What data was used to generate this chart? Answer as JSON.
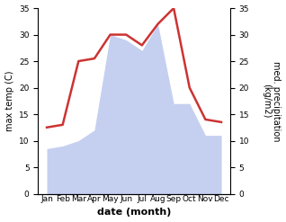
{
  "months": [
    "Jan",
    "Feb",
    "Mar",
    "Apr",
    "May",
    "Jun",
    "Jul",
    "Aug",
    "Sep",
    "Oct",
    "Nov",
    "Dec"
  ],
  "temperature": [
    12.5,
    13.0,
    25.0,
    25.5,
    30.0,
    30.0,
    28.0,
    32.0,
    35.0,
    20.0,
    14.0,
    13.5
  ],
  "precipitation": [
    8.5,
    9.0,
    10.0,
    12.0,
    30.0,
    29.0,
    27.0,
    32.0,
    17.0,
    17.0,
    11.0,
    11.0
  ],
  "temp_color": "#cc3333",
  "precip_color": "#c5cff0",
  "ylabel_left": "max temp (C)",
  "ylabel_right": "med. precipitation\n(kg/m2)",
  "xlabel": "date (month)",
  "ylim": [
    0,
    35
  ],
  "yticks": [
    0,
    5,
    10,
    15,
    20,
    25,
    30,
    35
  ],
  "temp_linewidth": 1.8,
  "background_color": "#ffffff",
  "title_fontsize": 7,
  "axis_fontsize": 7,
  "tick_fontsize": 6.5
}
